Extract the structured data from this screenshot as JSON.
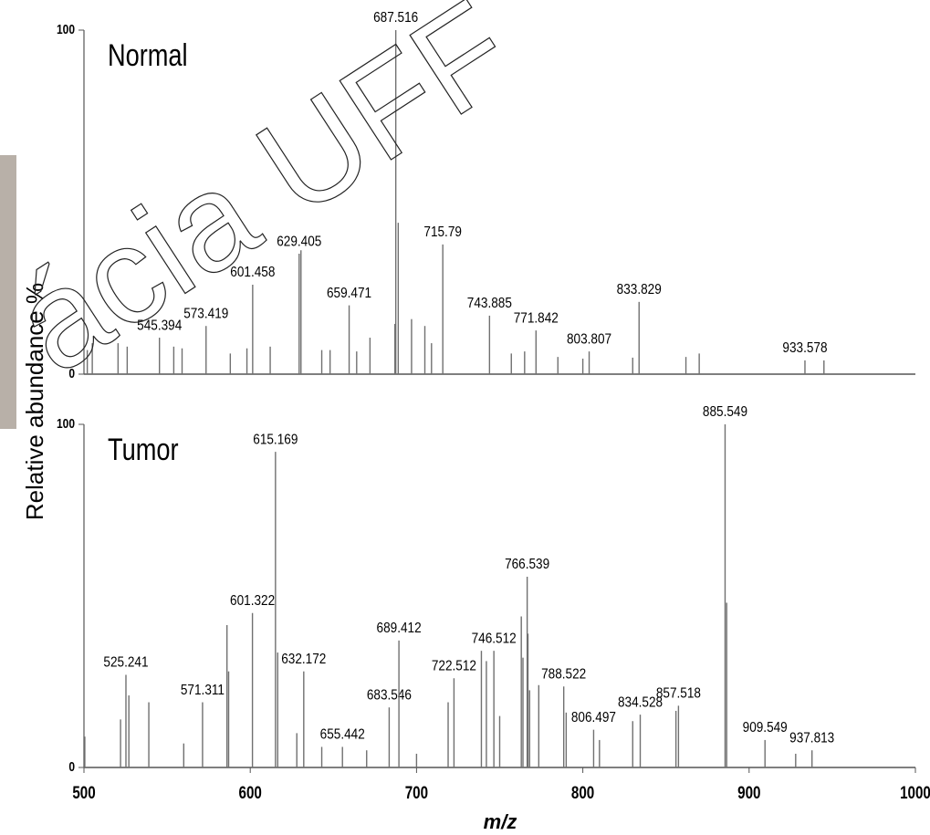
{
  "watermark": "ácia UFF",
  "chart_data": [
    {
      "type": "spectrum",
      "title": "Normal",
      "ylabel": "Relative abundance %",
      "xlim": [
        500,
        1000
      ],
      "ylim": [
        0,
        100
      ],
      "yticks": [
        0,
        100
      ],
      "color": "#707070",
      "labeled_peaks": {
        "x": [
          545.394,
          573.419,
          601.458,
          629.405,
          659.471,
          687.516,
          715.79,
          743.885,
          771.842,
          803.807,
          833.829,
          933.578
        ],
        "values": [
          10.6,
          14,
          26,
          35,
          20,
          100,
          37.7,
          17,
          12.7,
          6.6,
          21,
          4
        ]
      },
      "other_peaks": {
        "x": [
          502,
          505,
          520.5,
          526,
          554,
          559,
          588,
          598,
          612,
          630.5,
          643,
          648,
          664,
          672,
          687,
          689,
          697,
          705,
          709,
          757,
          765,
          785,
          800,
          830,
          862,
          870,
          945
        ],
        "values": [
          7,
          9,
          9,
          8,
          8,
          7.5,
          6,
          7.5,
          8,
          36,
          7,
          7,
          6.6,
          10.6,
          14.6,
          44,
          16,
          14,
          9,
          6,
          6.6,
          5,
          4.5,
          4.8,
          5,
          6,
          4
        ]
      }
    },
    {
      "type": "spectrum",
      "title": "Tumor",
      "xlabel": "m/z",
      "xlim": [
        500,
        1000
      ],
      "xticks": [
        500,
        600,
        700,
        800,
        900,
        1000
      ],
      "ylim": [
        0,
        100
      ],
      "yticks": [
        0,
        100
      ],
      "color": "#707070",
      "labeled_peaks": {
        "x": [
          525.241,
          571.311,
          601.322,
          615.169,
          632.172,
          655.442,
          683.546,
          689.412,
          722.512,
          746.512,
          766.539,
          788.522,
          806.497,
          834.528,
          857.518,
          885.549,
          909.549,
          937.813
        ],
        "values": [
          27,
          19,
          45,
          92,
          28,
          6,
          17.5,
          37,
          26,
          34,
          55.6,
          23.6,
          11,
          15.4,
          18,
          100,
          8,
          5
        ]
      },
      "other_peaks": {
        "x": [
          500.5,
          522,
          527,
          539,
          560,
          586,
          587,
          616.5,
          628,
          643,
          670,
          700,
          719,
          739,
          742,
          750,
          763,
          764,
          767,
          768,
          773.5,
          790,
          810,
          830,
          856,
          886.5,
          928
        ],
        "values": [
          9,
          14,
          21,
          19,
          7,
          41.5,
          28,
          33.5,
          10,
          6,
          5,
          4,
          19,
          34,
          31,
          15,
          44,
          32,
          39,
          22.5,
          24,
          16,
          8,
          13.5,
          16.5,
          48,
          4
        ]
      }
    }
  ]
}
